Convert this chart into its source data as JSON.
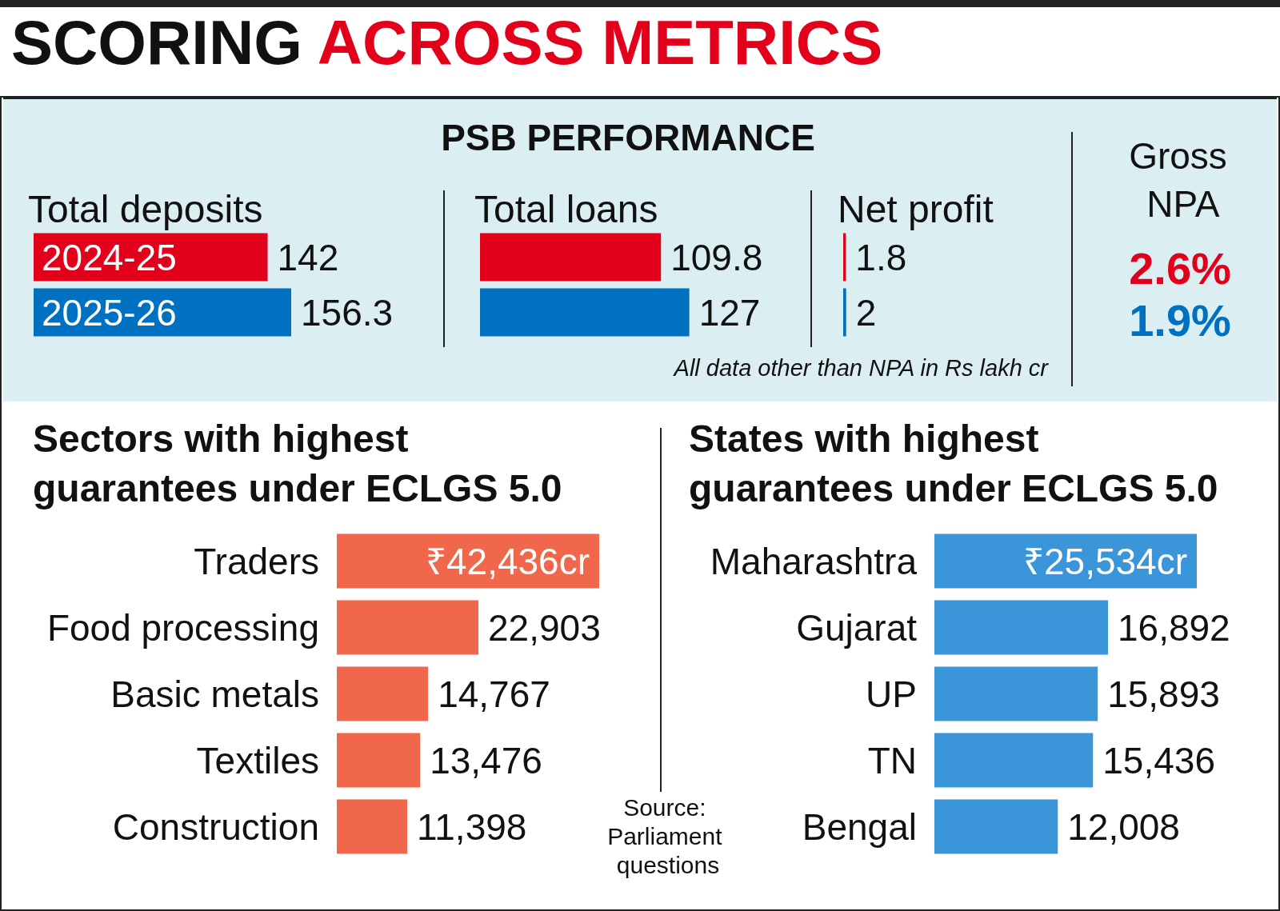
{
  "chart_data": [
    {
      "type": "other",
      "title": "SCORING ACROSS METRICS",
      "subtitle": "PSB PERFORMANCE",
      "annotations": [
        "All data other than NPA in Rs lakh cr",
        "Source: Parliament questions"
      ]
    },
    {
      "type": "bar",
      "orientation": "horizontal",
      "title": "Total deposits",
      "categories": [
        "2024-25",
        "2025-26"
      ],
      "values": [
        142,
        156.3
      ],
      "colors": [
        "#e2001a",
        "#0070c0"
      ],
      "data_labels": true
    },
    {
      "type": "bar",
      "orientation": "horizontal",
      "title": "Total loans",
      "categories": [
        null,
        null
      ],
      "values": [
        109.8,
        127
      ],
      "colors": [
        "#e2001a",
        "#0070c0"
      ],
      "data_labels": true
    },
    {
      "type": "bar",
      "orientation": "horizontal",
      "title": "Net profit",
      "categories": [
        null,
        null
      ],
      "values": [
        1.8,
        2
      ],
      "colors": [
        "#e2001a",
        "#0070c0"
      ],
      "data_labels": true
    },
    {
      "type": "other",
      "title": "Gross NPA",
      "values": [
        2.6,
        1.9
      ],
      "value_labels": [
        "2.6%",
        "1.9%"
      ],
      "colors": [
        "#e2001a",
        "#0070c0"
      ]
    },
    {
      "type": "bar",
      "orientation": "horizontal",
      "title": "Sectors with highest guarantees under ECLGS 5.0",
      "categories": [
        "Traders",
        "Food processing",
        "Basic metals",
        "Textiles",
        "Construction"
      ],
      "values": [
        42436,
        22903,
        14767,
        13476,
        11398
      ],
      "color": "#f0674c",
      "value_labels": [
        "₹42,436cr",
        "22,903",
        "14,767",
        "13,476",
        "11,398"
      ]
    },
    {
      "type": "bar",
      "orientation": "horizontal",
      "title": "States with highest guarantees under ECLGS 5.0",
      "categories": [
        "Maharashtra",
        "Gujarat",
        "UP",
        "TN",
        "Bengal"
      ],
      "values": [
        25534,
        16892,
        15893,
        15436,
        12008
      ],
      "color": "#3a96d8",
      "value_labels": [
        "₹25,534cr",
        "16,892",
        "15,893",
        "15,436",
        "12,008"
      ]
    }
  ]
}
